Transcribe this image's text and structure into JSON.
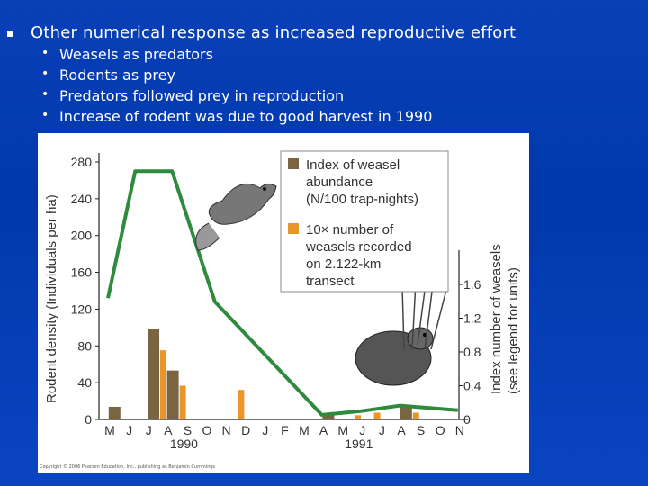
{
  "slide": {
    "main_bullet": "Other numerical response as increased reproductive effort",
    "sub_bullets": [
      "Weasels as predators",
      "Rodents as prey",
      "Predators followed prey in reproduction",
      "Increase of rodent was due to good harvest in 1990"
    ]
  },
  "colors": {
    "background": "#0039ad",
    "line": "#2e8b3e",
    "weasel_index_bar": "#7a6542",
    "weasel_count_bar": "#e8952a"
  },
  "chart_data": {
    "type": "bar+line",
    "y_left_label": "Rodent density (Individuals per ha)",
    "y_right_label": "Index number of weasels (see legend for units)",
    "y_left_ticks": [
      "0",
      "40",
      "80",
      "120",
      "160",
      "200",
      "240",
      "280"
    ],
    "y_right_ticks": [
      "0",
      "0.4",
      "0.8",
      "1.2",
      "1.6"
    ],
    "y_left_range": [
      0,
      300
    ],
    "y_right_range": [
      0,
      2.0
    ],
    "months": [
      "M",
      "J",
      "J",
      "A",
      "S",
      "O",
      "N",
      "D",
      "J",
      "F",
      "M",
      "A",
      "M",
      "J",
      "J",
      "A",
      "S",
      "O",
      "N"
    ],
    "year_labels": [
      {
        "label": "1990",
        "month_index": 4
      },
      {
        "label": "1991",
        "month_index": 13
      }
    ],
    "series": [
      {
        "name": "Rodent density",
        "kind": "line",
        "axis": "left",
        "points": [
          {
            "m": 0,
            "v": 132
          },
          {
            "m": 1.4,
            "v": 270
          },
          {
            "m": 3.3,
            "v": 270
          },
          {
            "m": 5.5,
            "v": 128
          },
          {
            "m": 11,
            "v": 5
          },
          {
            "m": 13,
            "v": 9
          },
          {
            "m": 15,
            "v": 15
          },
          {
            "m": 18,
            "v": 10
          }
        ]
      },
      {
        "name": "Index of weasel abundance (N/100 trap-nights)",
        "kind": "bar",
        "axis": "right",
        "values": [
          {
            "m": 0.5,
            "v": 0.15
          },
          {
            "m": 2.5,
            "v": 1.07
          },
          {
            "m": 3.5,
            "v": 0.58
          },
          {
            "m": 11.5,
            "v": 0.07
          },
          {
            "m": 15.5,
            "v": 0.15
          }
        ]
      },
      {
        "name": "10× number of weasels recorded on 2.122-km transect",
        "kind": "bar",
        "axis": "right",
        "values": [
          {
            "m": 2.5,
            "v": 0.82
          },
          {
            "m": 3.5,
            "v": 0.4
          },
          {
            "m": 6.5,
            "v": 0.35
          },
          {
            "m": 12.5,
            "v": 0.05
          },
          {
            "m": 13.5,
            "v": 0.08
          },
          {
            "m": 15.5,
            "v": 0.08
          }
        ]
      }
    ],
    "legend": [
      {
        "label_lines": [
          "Index of weasel",
          "abundance",
          "(N/100 trap-nights)"
        ],
        "color_key": "weasel_index_bar"
      },
      {
        "label_lines": [
          "10× number of",
          "weasels recorded",
          "on 2.122-km",
          "transect"
        ],
        "color_key": "weasel_count_bar"
      }
    ],
    "legend_position": "top-right"
  },
  "figure": {
    "copyright": "Copyright © 2006 Pearson Education, Inc., publishing as Benjamin Cummings"
  }
}
